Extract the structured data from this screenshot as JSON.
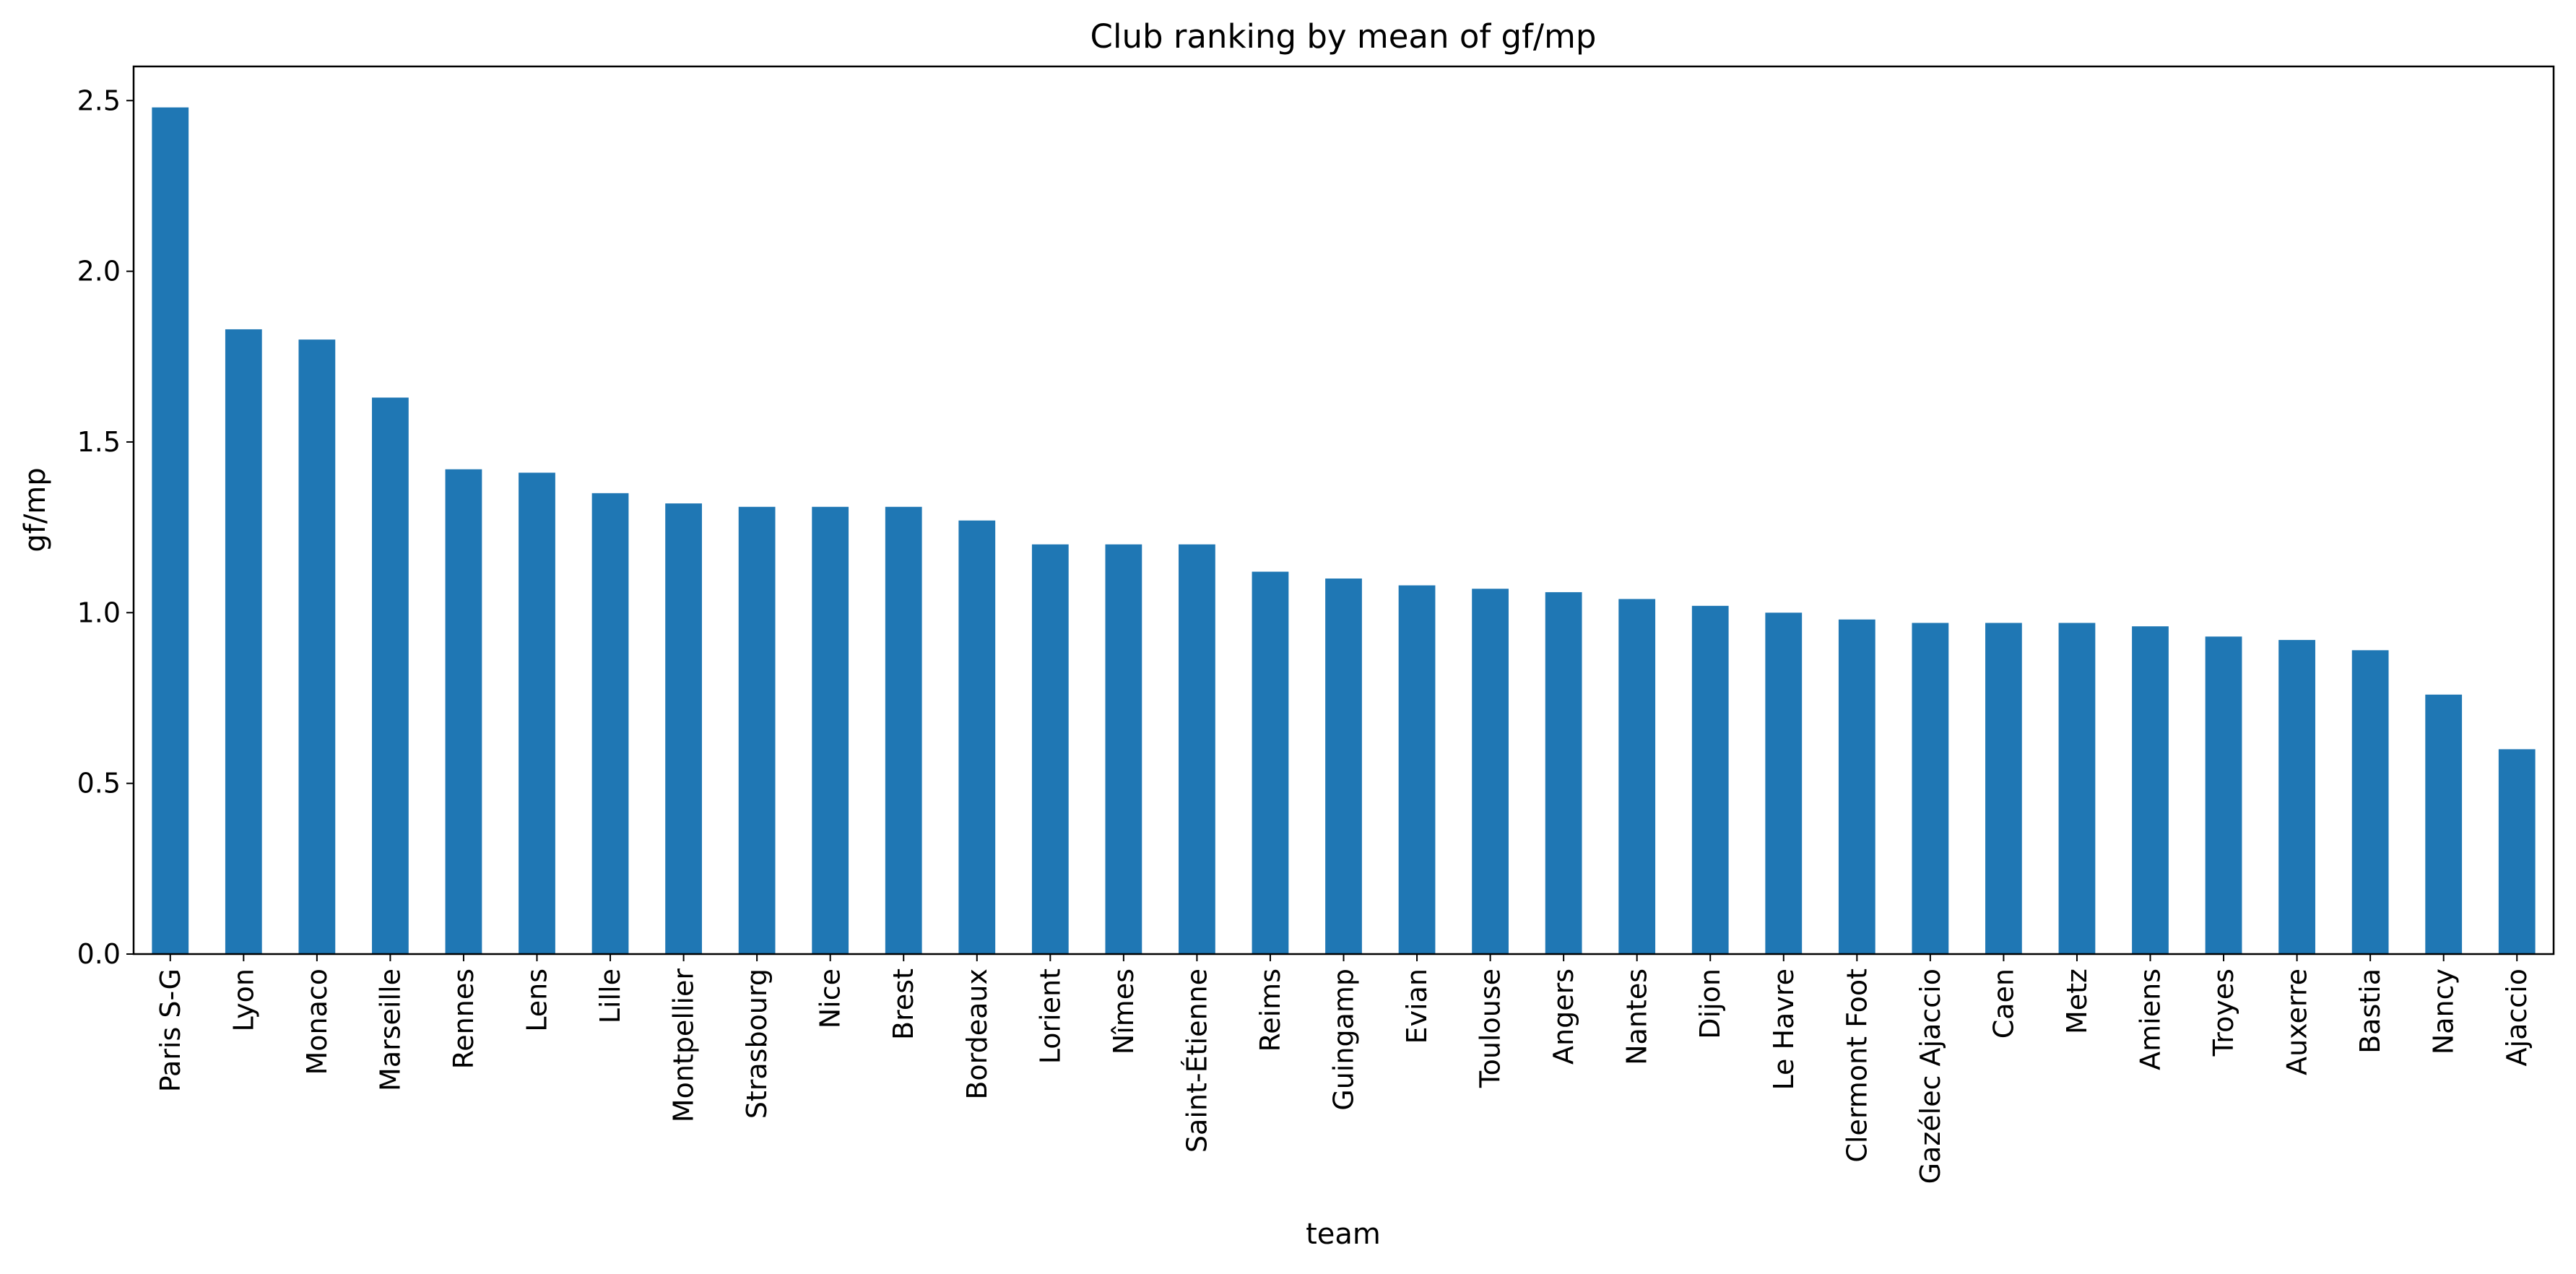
{
  "chart_data": {
    "type": "bar",
    "title": "Club ranking by mean of gf/mp",
    "xlabel": "team",
    "ylabel": "gf/mp",
    "ylim": [
      0,
      2.6
    ],
    "yticks": [
      "0.0",
      "0.5",
      "1.0",
      "1.5",
      "2.0",
      "2.5"
    ],
    "grid": false,
    "bar_color": "#1f77b4",
    "categories": [
      "Paris S-G",
      "Lyon",
      "Monaco",
      "Marseille",
      "Rennes",
      "Lens",
      "Lille",
      "Montpellier",
      "Strasbourg",
      "Nice",
      "Brest",
      "Bordeaux",
      "Lorient",
      "Nîmes",
      "Saint-Étienne",
      "Reims",
      "Guingamp",
      "Evian",
      "Toulouse",
      "Angers",
      "Nantes",
      "Dijon",
      "Le Havre",
      "Clermont Foot",
      "Gazélec Ajaccio",
      "Caen",
      "Metz",
      "Amiens",
      "Troyes",
      "Auxerre",
      "Bastia",
      "Nancy",
      "Ajaccio"
    ],
    "values": [
      2.48,
      1.83,
      1.8,
      1.63,
      1.42,
      1.41,
      1.35,
      1.32,
      1.31,
      1.31,
      1.31,
      1.27,
      1.2,
      1.2,
      1.2,
      1.12,
      1.1,
      1.08,
      1.07,
      1.06,
      1.04,
      1.02,
      1.0,
      0.98,
      0.97,
      0.97,
      0.97,
      0.96,
      0.93,
      0.92,
      0.89,
      0.76,
      0.6
    ]
  }
}
